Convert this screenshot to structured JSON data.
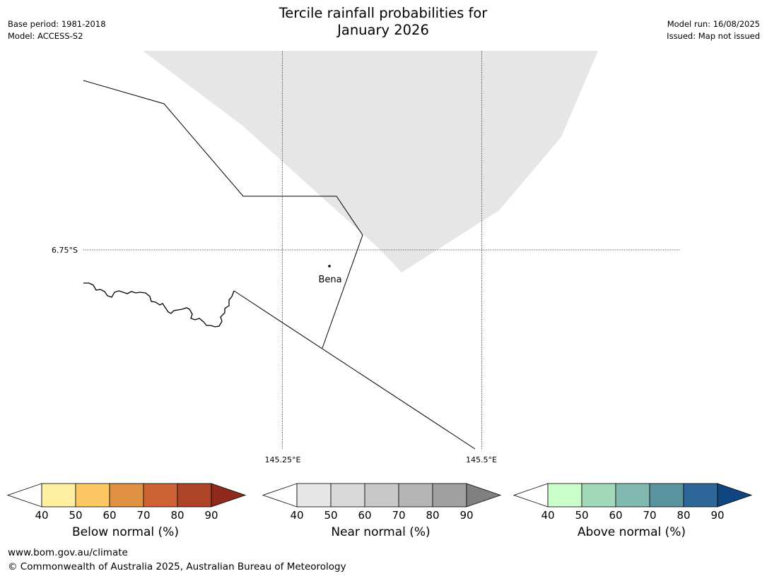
{
  "header": {
    "title_line1": "Tercile rainfall probabilities for",
    "title_line2": "January 2026",
    "base_period": "Base period: 1981-2018",
    "model": "Model: ACCESS-S2",
    "model_run": "Model run: 16/08/2025",
    "issued": "Issued: Map not issued"
  },
  "map": {
    "lat_label": "6.75°S",
    "lon_labels": [
      "145.25°E",
      "145.5°E"
    ],
    "town_label": "Bena",
    "colors": {
      "near_normal_region": "#e6e6e6",
      "boundary": "#000000"
    }
  },
  "legends": {
    "ticks": [
      "40",
      "50",
      "60",
      "70",
      "80",
      "90"
    ],
    "below": {
      "label": "Below normal (%)",
      "colors": [
        "#fdeea0",
        "#fdc863",
        "#e09242",
        "#cd6334",
        "#ad4428",
        "#8f2a1d"
      ]
    },
    "near": {
      "label": "Near normal (%)",
      "colors": [
        "#e6e6e6",
        "#d9d9d9",
        "#c8c8c8",
        "#b5b5b5",
        "#a0a0a0",
        "#808080"
      ]
    },
    "above": {
      "label": "Above normal (%)",
      "colors": [
        "#c9fdc9",
        "#a2d9b9",
        "#81b9b0",
        "#5a93a0",
        "#2f6699",
        "#0f4680"
      ]
    }
  },
  "footer": {
    "url": "www.bom.gov.au/climate",
    "copyright": "© Commonwealth of Australia 2025, Australian Bureau of Meteorology"
  }
}
